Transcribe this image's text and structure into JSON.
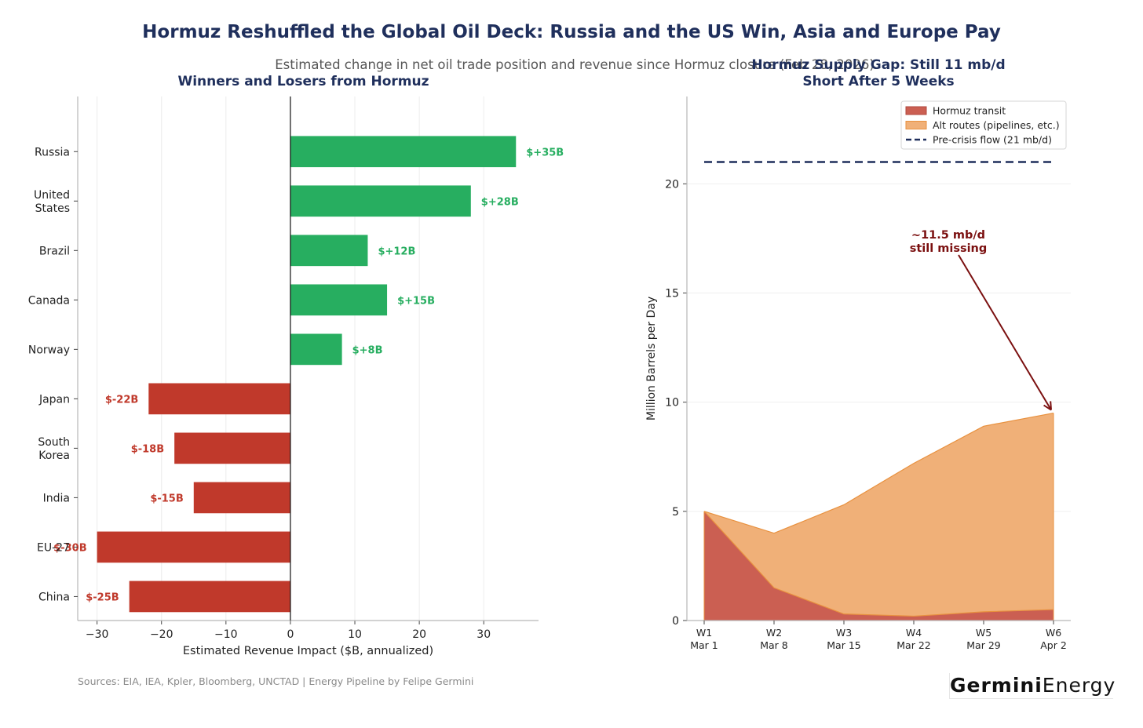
{
  "title": "Hormuz Reshuffled the Global Oil Deck: Russia and the US Win, Asia and Europe Pay",
  "subtitle": "Estimated change in net oil trade position and revenue since Hormuz closure (Feb 28, 2026)",
  "source": "Sources: EIA, IEA, Kpler, Bloomberg, UNCTAD | Energy Pipeline by Felipe Germini",
  "brand": {
    "bold": "Germini",
    "light": "Energy"
  },
  "colors": {
    "positive": "#27ae60",
    "negative": "#c0392b",
    "title": "#1f2f5c",
    "hormuz": "#cb5f52",
    "alt": "#f0b078",
    "alt_line": "#e8913f",
    "precrisis": "#1f2f5c",
    "annotation": "#7b1010"
  },
  "chart_data": [
    {
      "type": "bar",
      "orientation": "horizontal",
      "title": "Winners and Losers from Hormuz",
      "xlabel": "Estimated Revenue Impact ($B, annualized)",
      "ylabel": "",
      "xlim": [
        -33,
        38.5
      ],
      "xticks": [
        -30,
        -20,
        -10,
        0,
        10,
        20,
        30
      ],
      "xtick_labels": [
        "−30",
        "−20",
        "−10",
        "0",
        "10",
        "20",
        "30"
      ],
      "grid": true,
      "categories": [
        [
          "Russia"
        ],
        [
          "United",
          "States"
        ],
        [
          "Brazil"
        ],
        [
          "Canada"
        ],
        [
          "Norway"
        ],
        [
          "Japan"
        ],
        [
          "South",
          "Korea"
        ],
        [
          "India"
        ],
        [
          "EU-27"
        ],
        [
          "China"
        ]
      ],
      "values": [
        35,
        28,
        12,
        15,
        8,
        -22,
        -18,
        -15,
        -30,
        -25
      ],
      "data_labels": [
        "$+35B",
        "$+28B",
        "$+12B",
        "$+15B",
        "$+8B",
        "$-22B",
        "$-18B",
        "$-15B",
        "$-30B",
        "$-25B"
      ]
    },
    {
      "type": "area",
      "title": [
        "Hormuz Supply Gap: Still 11 mb/d",
        "Short After 5 Weeks"
      ],
      "ylabel": "Million Barrels per Day",
      "xlabel": "",
      "ylim": [
        0,
        24
      ],
      "yticks": [
        0,
        5,
        10,
        15,
        20
      ],
      "grid": true,
      "x": [
        [
          "W1",
          "Mar 1"
        ],
        [
          "W2",
          "Mar 8"
        ],
        [
          "W3",
          "Mar 15"
        ],
        [
          "W4",
          "Mar 22"
        ],
        [
          "W5",
          "Mar 29"
        ],
        [
          "W6",
          "Apr 2"
        ]
      ],
      "series": [
        {
          "name": "Hormuz transit",
          "values": [
            5,
            1.5,
            0.3,
            0.2,
            0.4,
            0.5
          ]
        },
        {
          "name": "Alt routes (pipelines, etc.)",
          "values": [
            0,
            2.5,
            5,
            7,
            8.5,
            9
          ]
        }
      ],
      "reference_line": {
        "name": "Pre-crisis flow (21 mb/d)",
        "value": 21
      },
      "legend_position": "top-right",
      "annotation": {
        "text": [
          "~11.5 mb/d",
          "still missing"
        ],
        "x_index": 5,
        "y": 9.5,
        "text_y": 17.5
      }
    }
  ]
}
